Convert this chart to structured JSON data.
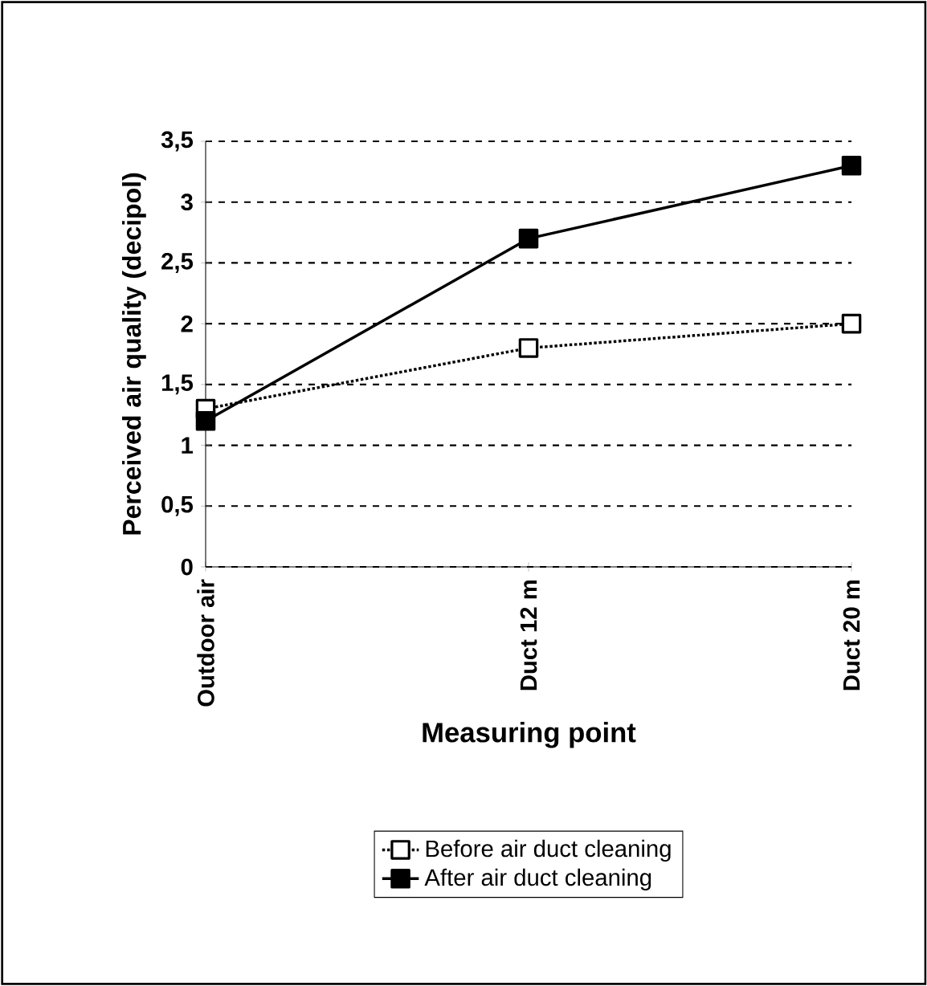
{
  "chart_data": {
    "type": "line",
    "xlabel": "Measuring point",
    "ylabel": "Perceived air quality (decipol)",
    "categories": [
      "Outdoor air",
      "Duct 12 m",
      "Duct 20 m"
    ],
    "series": [
      {
        "name": "Before air duct cleaning",
        "color": "#000000",
        "values": [
          1.3,
          1.8,
          2.0
        ],
        "line_style": "dotted",
        "marker": "square"
      },
      {
        "name": "After air duct cleaning",
        "color": "#000000",
        "values": [
          1.2,
          2.7,
          3.3
        ],
        "line_style": "solid",
        "marker": "square"
      }
    ],
    "ylim": [
      0,
      3.5
    ],
    "yticks": [
      0,
      {
        "value": 0.5,
        "label": "0,5"
      },
      1,
      {
        "value": 1.5,
        "label": "1,5"
      },
      2,
      {
        "value": 2.5,
        "label": "2,5"
      },
      3,
      {
        "value": 3.5,
        "label": "3,5"
      }
    ],
    "grid": "y",
    "legend": "bottom"
  }
}
